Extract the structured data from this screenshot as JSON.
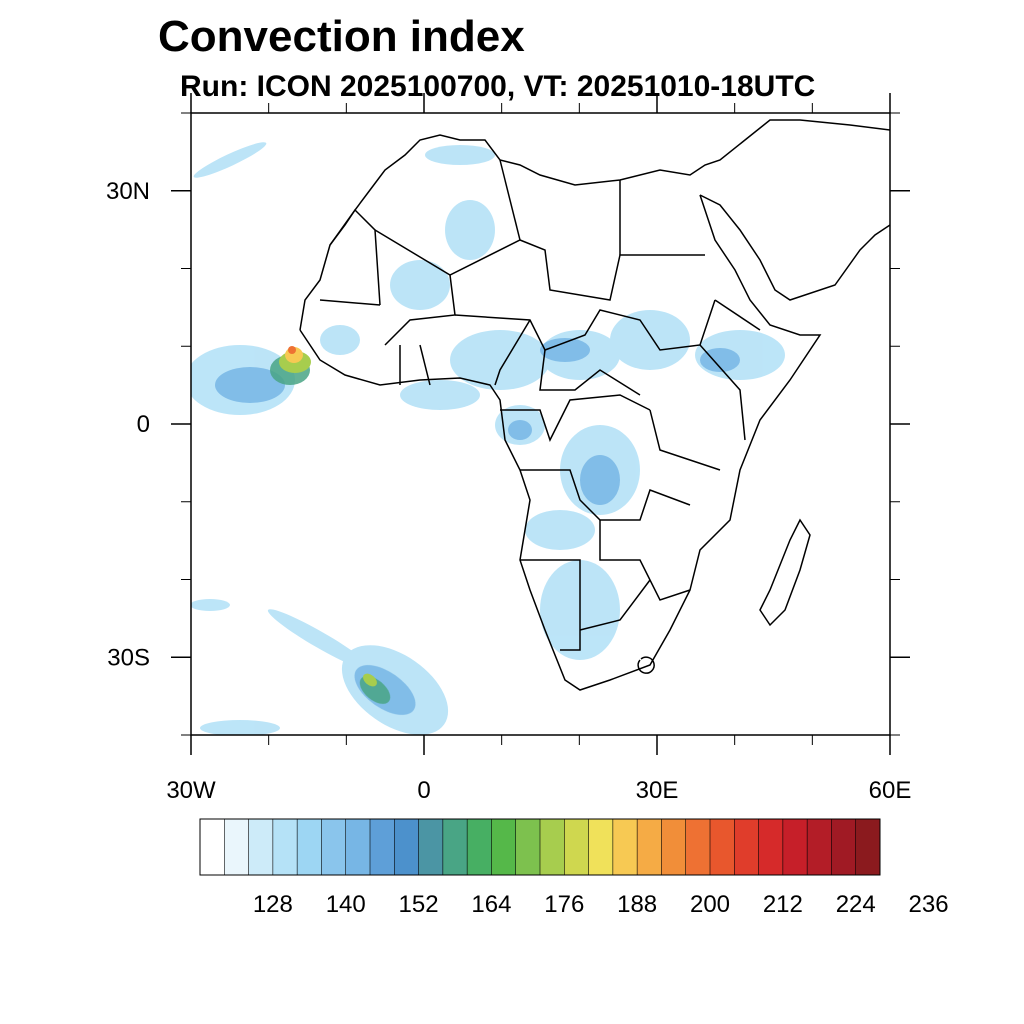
{
  "title": "Convection index",
  "subtitle": "Run: ICON 2025100700,  VT: 20251010-18UTC",
  "map": {
    "lon_range": [
      -30,
      60
    ],
    "lat_range": [
      -40,
      40
    ],
    "lon_ticks": [
      {
        "value": -30,
        "label": "30W"
      },
      {
        "value": 0,
        "label": "0"
      },
      {
        "value": 30,
        "label": "30E"
      },
      {
        "value": 60,
        "label": "60E"
      }
    ],
    "lat_ticks": [
      {
        "value": 30,
        "label": "30N"
      },
      {
        "value": 0,
        "label": "0"
      },
      {
        "value": -30,
        "label": "30S"
      }
    ]
  },
  "colorbar": {
    "tick_labels": [
      "128",
      "140",
      "152",
      "164",
      "176",
      "188",
      "200",
      "212",
      "224",
      "236"
    ],
    "colors": [
      "#ffffff",
      "#eaf6fc",
      "#cdebf9",
      "#b5e2f7",
      "#9dd6f3",
      "#8ac5ec",
      "#77b6e5",
      "#5e9fd8",
      "#4c91cc",
      "#4b95a4",
      "#49a585",
      "#47af63",
      "#55b849",
      "#7dc14e",
      "#a7cd4e",
      "#cfd74f",
      "#f0e15a",
      "#f7c953",
      "#f5ab45",
      "#f18e39",
      "#ee7133",
      "#e8572d",
      "#e03d2b",
      "#d62a2a",
      "#c61f29",
      "#b31d27",
      "#a01a24",
      "#8b1a1e"
    ]
  },
  "colors": {
    "coast": "#000000",
    "frame": "#000000"
  }
}
